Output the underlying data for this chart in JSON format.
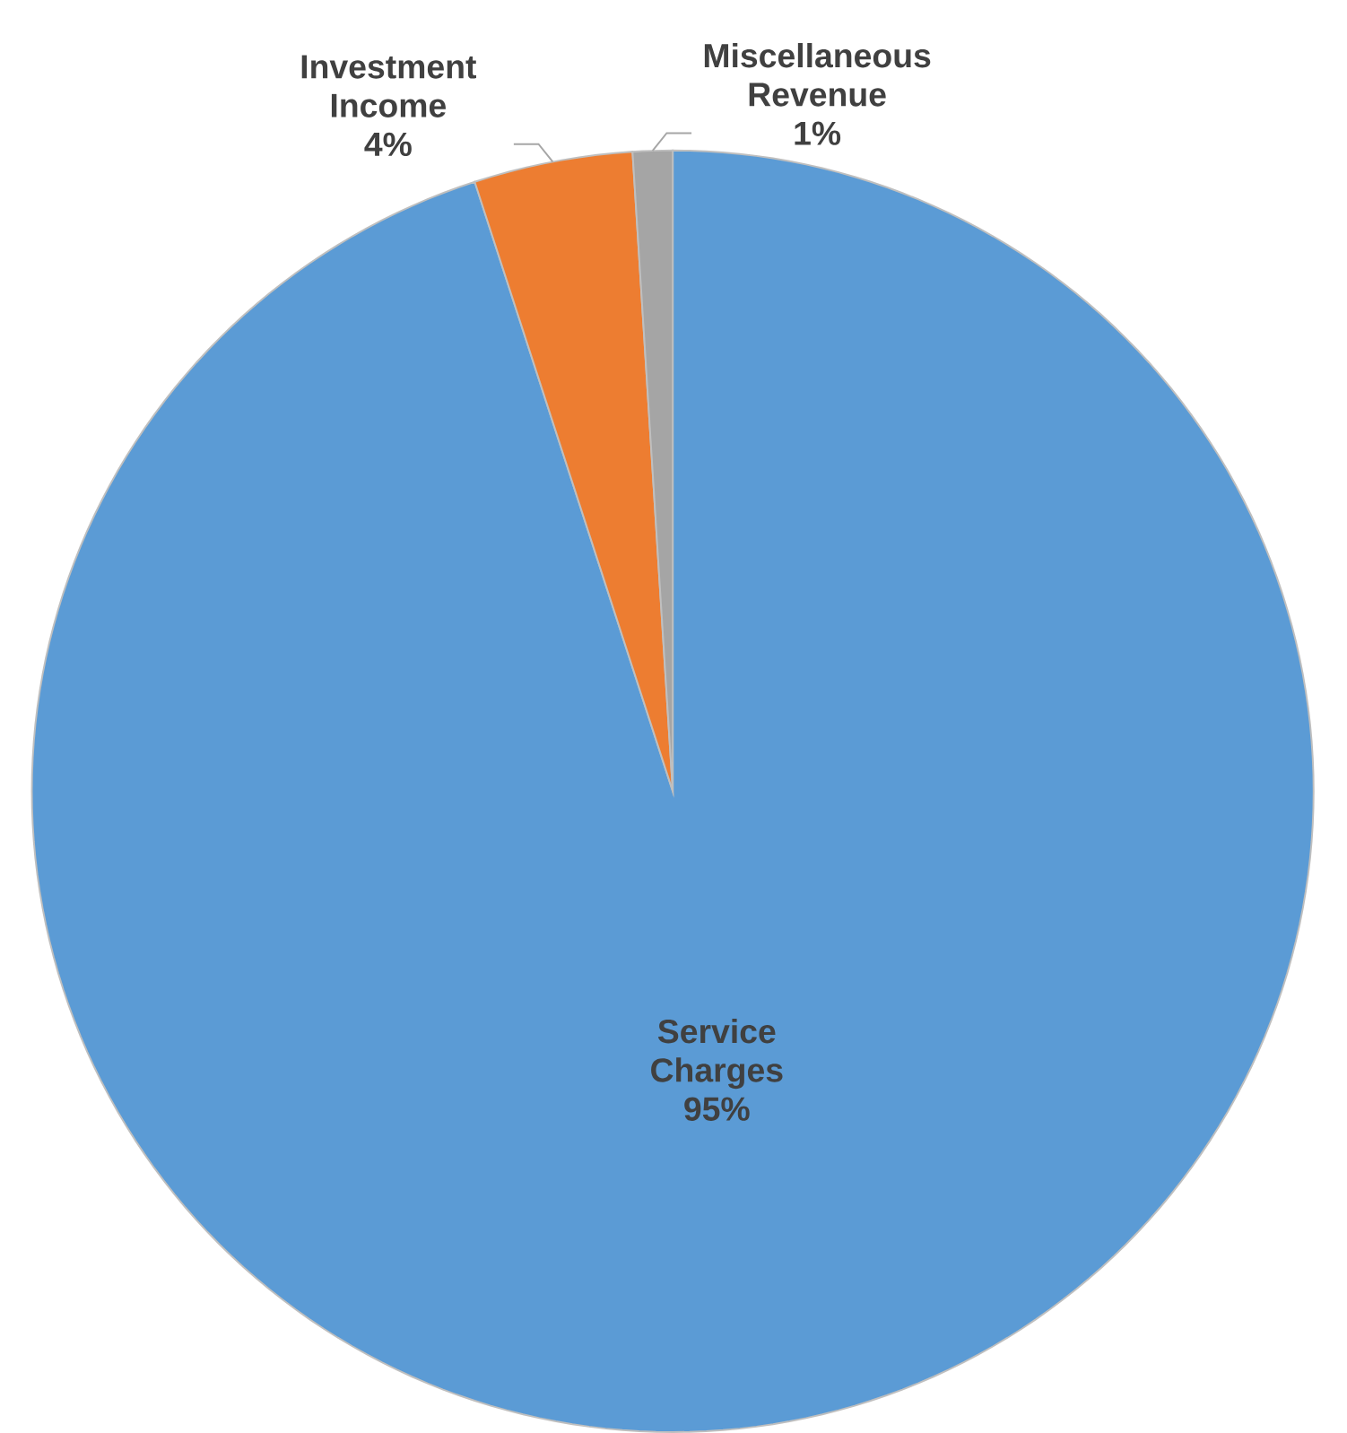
{
  "chart_data": {
    "type": "pie",
    "categories": [
      "Service Charges",
      "Investment Income",
      "Miscellaneous Revenue"
    ],
    "values": [
      95,
      4,
      1
    ],
    "value_labels": [
      "95%",
      "4%",
      "1%"
    ],
    "colors": [
      "#5b9bd5",
      "#ed7d31",
      "#a5a5a5"
    ]
  }
}
